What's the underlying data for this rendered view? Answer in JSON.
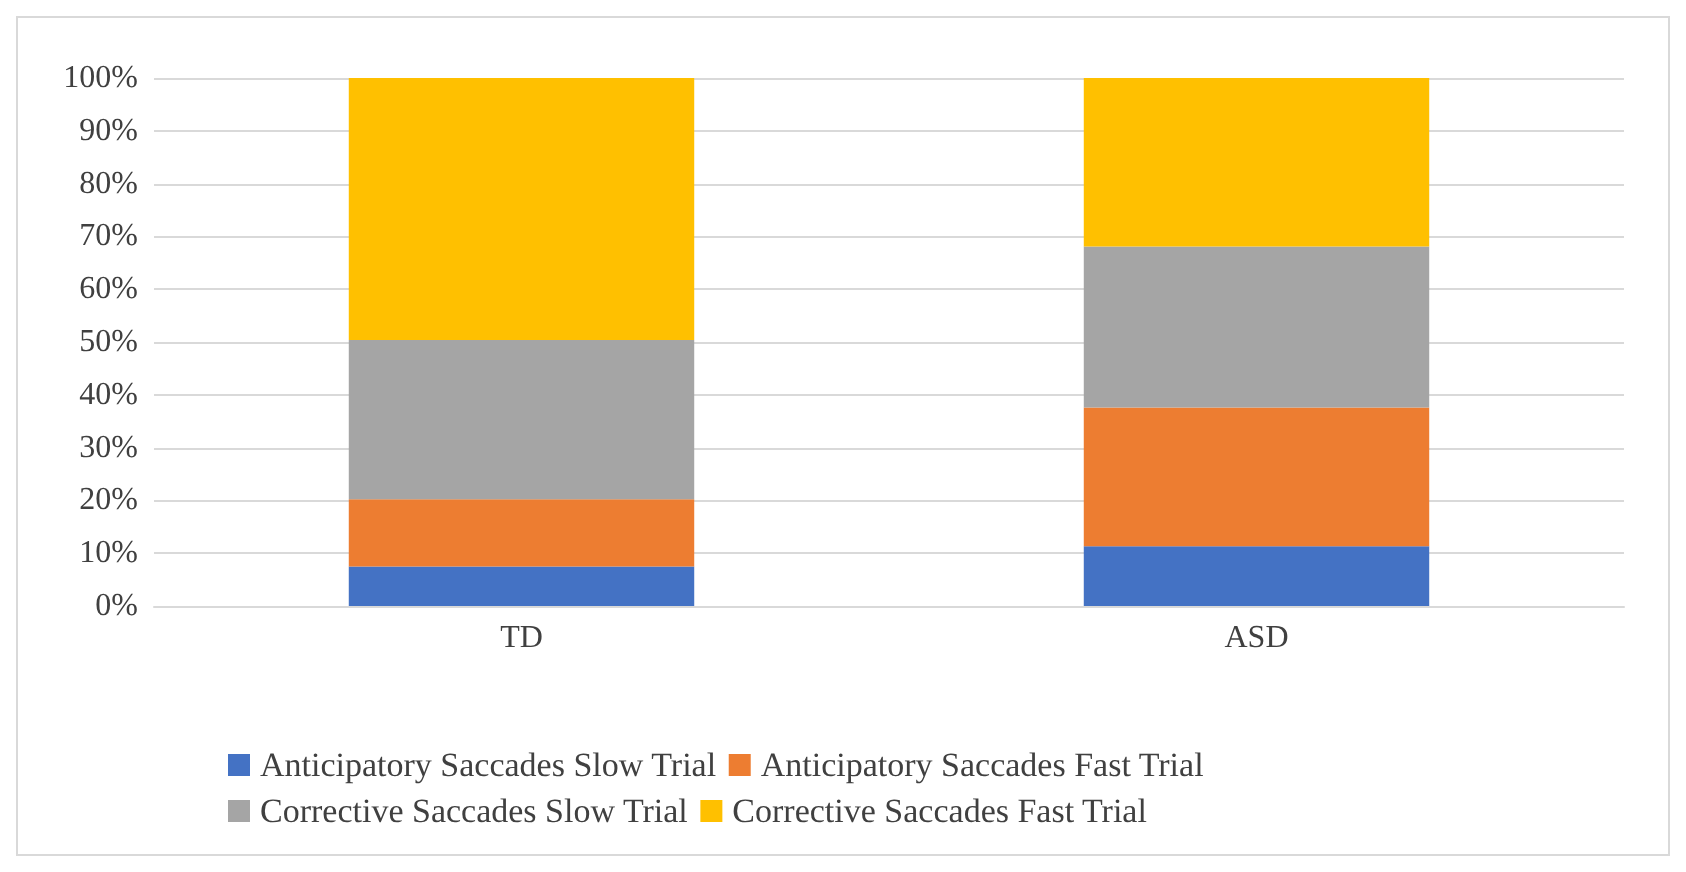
{
  "chart_data": {
    "type": "bar",
    "stacked": true,
    "categories": [
      "TD",
      "ASD"
    ],
    "series": [
      {
        "name": "Anticipatory Saccades Slow Trial",
        "color": "#4472c4",
        "values": [
          7.5,
          11.3
        ]
      },
      {
        "name": "Anticipatory Saccades Fast Trial",
        "color": "#ed7d31",
        "values": [
          12.7,
          26.3
        ]
      },
      {
        "name": "Corrective Saccades Slow Trial",
        "color": "#a5a5a5",
        "values": [
          30.2,
          30.5
        ]
      },
      {
        "name": "Corrective Saccades Fast Trial",
        "color": "#ffc000",
        "values": [
          49.6,
          31.9
        ]
      }
    ],
    "ylim": [
      0,
      100
    ],
    "yticks": [
      {
        "value": 0,
        "label": "0%"
      },
      {
        "value": 10,
        "label": "10%"
      },
      {
        "value": 20,
        "label": "20%"
      },
      {
        "value": 30,
        "label": "30%"
      },
      {
        "value": 40,
        "label": "40%"
      },
      {
        "value": 50,
        "label": "50%"
      },
      {
        "value": 60,
        "label": "60%"
      },
      {
        "value": 70,
        "label": "70%"
      },
      {
        "value": 80,
        "label": "80%"
      },
      {
        "value": 90,
        "label": "90%"
      },
      {
        "value": 100,
        "label": "100%"
      }
    ],
    "grid": "y",
    "legend": "bottom"
  }
}
